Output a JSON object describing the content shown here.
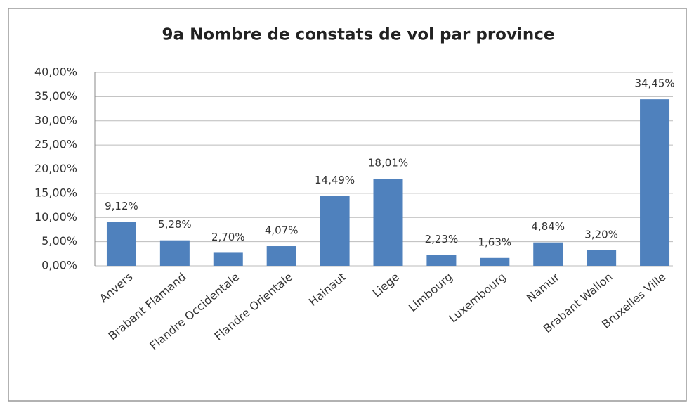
{
  "chart_data": {
    "type": "bar",
    "title": "9a  Nombre de constats de vol par province",
    "categories": [
      "Anvers",
      "Brabant Flamand",
      "Flandre Occidentale",
      "Flandre Orientale",
      "Hainaut",
      "Liege",
      "Limbourg",
      "Luxembourg",
      "Namur",
      "Brabant Wallon",
      "Bruxelles Ville"
    ],
    "values": [
      9.12,
      5.28,
      2.7,
      4.07,
      14.49,
      18.01,
      2.23,
      1.63,
      4.84,
      3.2,
      34.45
    ],
    "value_labels": [
      "9,12%",
      "5,28%",
      "2,70%",
      "4,07%",
      "14,49%",
      "18,01%",
      "2,23%",
      "1,63%",
      "4,84%",
      "3,20%",
      "34,45%"
    ],
    "color": "#4f81bd",
    "ylim": [
      0,
      40
    ],
    "yticks": [
      {
        "value": 0,
        "label": "0,00%"
      },
      {
        "value": 5,
        "label": "5,00%"
      },
      {
        "value": 10,
        "label": "10,00%"
      },
      {
        "value": 15,
        "label": "15,00%"
      },
      {
        "value": 20,
        "label": "20,00%"
      },
      {
        "value": 25,
        "label": "25,00%"
      },
      {
        "value": 30,
        "label": "30,00%"
      },
      {
        "value": 35,
        "label": "35,00%"
      },
      {
        "value": 40,
        "label": "40,00%"
      }
    ],
    "grid": true
  }
}
